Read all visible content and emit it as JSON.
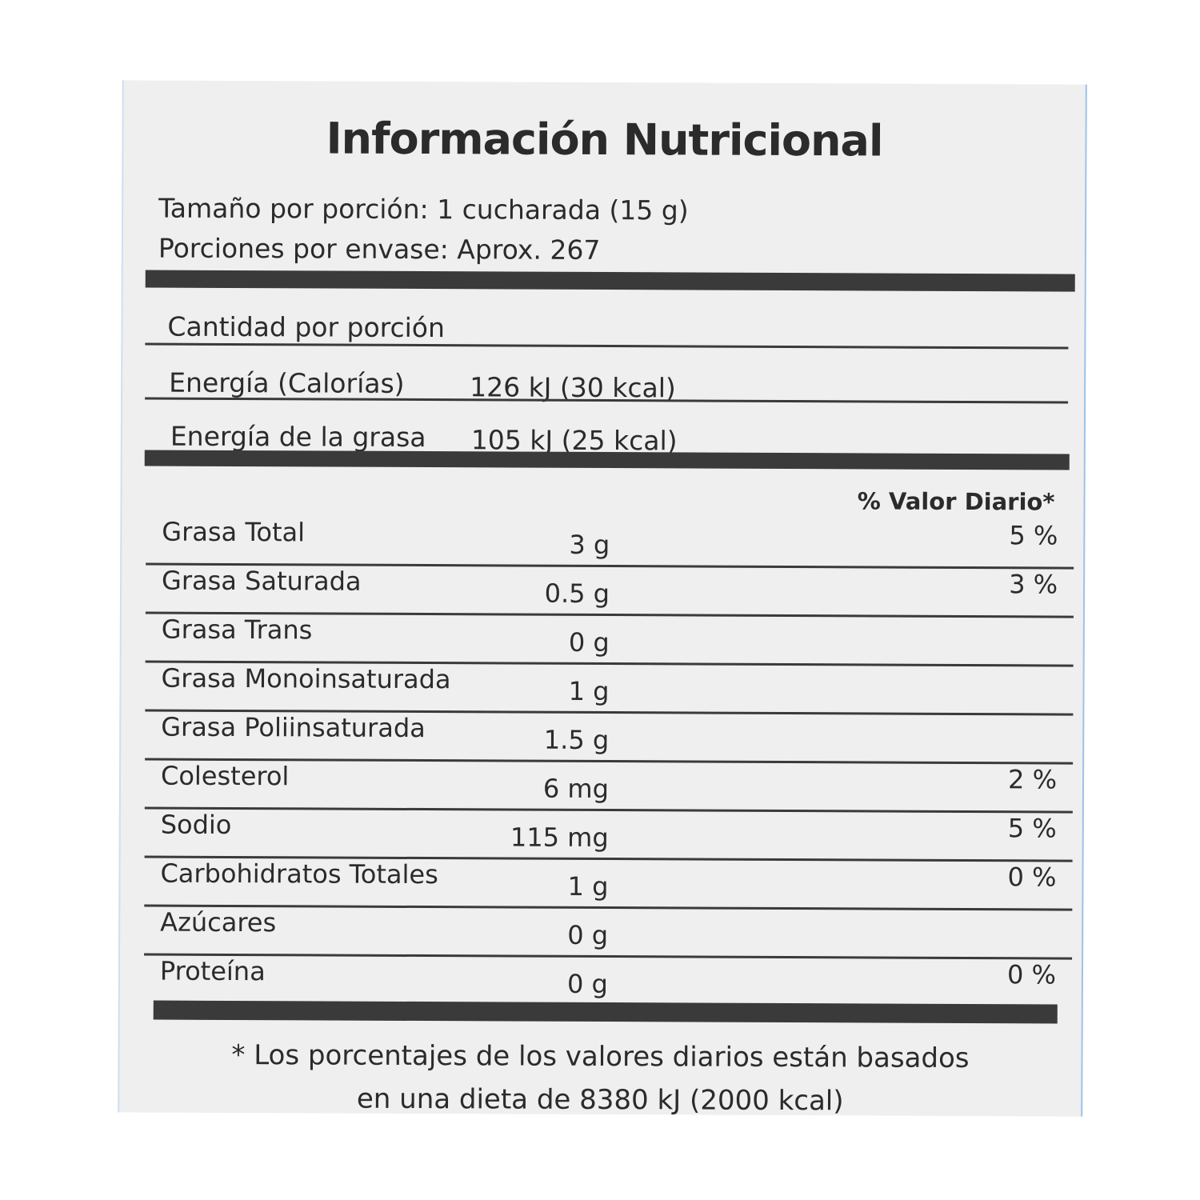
{
  "title": "Información Nutricional",
  "serving_size": "Tamaño por porción: 1 cucharada (15 g)",
  "servings_per_container": "Porciones por envase: Aprox. 267",
  "amount_per_serving": "Cantidad por porción",
  "energy": {
    "label": "Energía (Calorías)",
    "value": "126 kJ (30 kcal)"
  },
  "energy_fat": {
    "label": "Energía de la grasa",
    "value": "105 kJ (25 kcal)"
  },
  "daily_value_header": "% Valor Diario*",
  "nutrients": [
    {
      "name": "Grasa Total",
      "amount": "3 g",
      "dv": "5 %"
    },
    {
      "name": "Grasa Saturada",
      "amount": "0.5 g",
      "dv": "3 %"
    },
    {
      "name": "Grasa Trans",
      "amount": "0 g",
      "dv": ""
    },
    {
      "name": "Grasa Monoinsaturada",
      "amount": "1 g",
      "dv": ""
    },
    {
      "name": "Grasa Poliinsaturada",
      "amount": "1.5 g",
      "dv": ""
    },
    {
      "name": "Colesterol",
      "amount": "6 mg",
      "dv": "2 %"
    },
    {
      "name": "Sodio",
      "amount": "115 mg",
      "dv": "5 %"
    },
    {
      "name": "Carbohidratos Totales",
      "amount": "1 g",
      "dv": "0 %"
    },
    {
      "name": "Azúcares",
      "amount": "0 g",
      "dv": ""
    },
    {
      "name": "Proteína",
      "amount": "0 g",
      "dv": "0 %"
    }
  ],
  "footnote_line1": "* Los porcentajes de los valores diarios están basados",
  "footnote_line2": "en una dieta de 8380 kJ (2000 kcal)"
}
